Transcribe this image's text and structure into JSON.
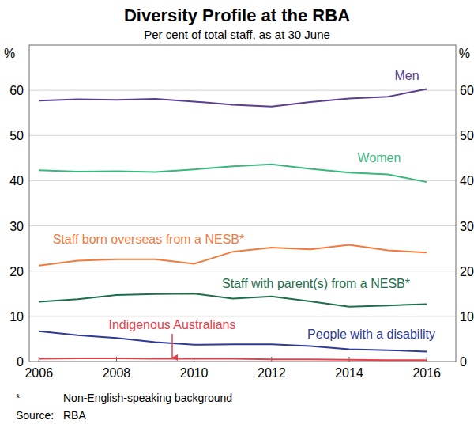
{
  "chart_data": {
    "type": "line",
    "title": "Diversity Profile at the RBA",
    "subtitle": "Per cent of total staff, as at 30 June",
    "y_unit": "%",
    "x": [
      2006,
      2007,
      2008,
      2009,
      2010,
      2011,
      2012,
      2013,
      2014,
      2015,
      2016
    ],
    "xlim": [
      2005.75,
      2016.75
    ],
    "xticks": [
      2006,
      2008,
      2010,
      2012,
      2014,
      2016
    ],
    "ylim": [
      0,
      70
    ],
    "yticks": [
      0,
      10,
      20,
      30,
      40,
      50,
      60
    ],
    "grid": true,
    "series": [
      {
        "name": "Men",
        "color": "#5b3f8f",
        "values": [
          57.7,
          58.0,
          57.9,
          58.1,
          57.5,
          56.8,
          56.4,
          57.4,
          58.2,
          58.6,
          60.3
        ]
      },
      {
        "name": "Women",
        "color": "#3bb77e",
        "values": [
          42.3,
          42.0,
          42.1,
          41.9,
          42.5,
          43.2,
          43.6,
          42.6,
          41.8,
          41.4,
          39.7
        ]
      },
      {
        "name": "Staff born overseas from a NESB*",
        "color": "#f07b3f",
        "values": [
          21.2,
          22.3,
          22.6,
          22.6,
          21.6,
          24.3,
          25.2,
          24.8,
          25.8,
          24.6,
          24.1
        ]
      },
      {
        "name": "Staff with parent(s) from a NESB*",
        "color": "#1f6e4a",
        "values": [
          13.2,
          13.8,
          14.7,
          14.9,
          15.0,
          13.9,
          14.4,
          13.3,
          12.1,
          12.4,
          12.7
        ]
      },
      {
        "name": "People with a disability",
        "color": "#2e3b97",
        "values": [
          6.7,
          5.8,
          5.2,
          4.3,
          3.7,
          3.8,
          3.8,
          3.4,
          2.7,
          2.5,
          2.2
        ]
      },
      {
        "name": "Indigenous Australians",
        "color": "#e8404a",
        "values": [
          0.6,
          0.7,
          0.7,
          0.6,
          0.6,
          0.6,
          0.5,
          0.5,
          0.4,
          0.3,
          0.3
        ]
      }
    ],
    "notes": [
      [
        "*",
        "Non-English-speaking background"
      ],
      [
        "Source:",
        "RBA"
      ]
    ]
  }
}
